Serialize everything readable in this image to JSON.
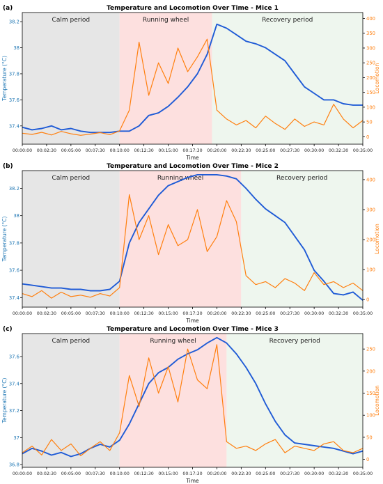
{
  "colors": {
    "temperature": "#1f5bd6",
    "locomotion": "#ff7f0e",
    "temp_axis_text": "#1f77b4",
    "calm_bg": "#e6e6e6",
    "running_bg": "#fde0df",
    "recovery_bg": "#eef6ee"
  },
  "chart_data": [
    {
      "type": "line",
      "panel_label": "(a)",
      "title": "Temperature and Locomotion Over Time - Mice 1",
      "xlabel": "Time",
      "ylabel_left": "Temperature (°C)",
      "ylabel_right": "Locomotion",
      "x_ticks": [
        "00:00:00",
        "00:02:30",
        "00:05:00",
        "00:07:30",
        "00:10:00",
        "00:12:30",
        "00:15:00",
        "00:17:30",
        "00:20:00",
        "00:22:30",
        "00:25:00",
        "00:27:30",
        "00:30:00",
        "00:32:30",
        "00:35:00"
      ],
      "x_range_minutes": [
        0,
        35
      ],
      "y_left_ticks": [
        37.4,
        37.6,
        37.8,
        38.0,
        38.2
      ],
      "y_left_range": [
        37.26,
        38.27
      ],
      "y_right_ticks": [
        0,
        50,
        100,
        150,
        200,
        250,
        300,
        350,
        400
      ],
      "y_right_range": [
        -25,
        420
      ],
      "periods": [
        {
          "label": "Calm period",
          "start": 0,
          "end": 10
        },
        {
          "label": "Running wheel",
          "start": 10,
          "end": 19.5
        },
        {
          "label": "Recovery period",
          "start": 19.5,
          "end": 35
        }
      ],
      "series": [
        {
          "axis": "left",
          "color": "#1f5bd6",
          "x": [
            0,
            1,
            2,
            3,
            4,
            5,
            6,
            7,
            8,
            9,
            10,
            11,
            12,
            13,
            14,
            15,
            16,
            17,
            18,
            19,
            20,
            21,
            22,
            23,
            24,
            25,
            26,
            27,
            28,
            29,
            30,
            31,
            32,
            33,
            34,
            35
          ],
          "y": [
            37.39,
            37.37,
            37.38,
            37.4,
            37.37,
            37.38,
            37.36,
            37.35,
            37.35,
            37.35,
            37.36,
            37.36,
            37.4,
            37.48,
            37.5,
            37.55,
            37.62,
            37.7,
            37.8,
            37.95,
            38.18,
            38.15,
            38.1,
            38.05,
            38.03,
            38.0,
            37.95,
            37.9,
            37.8,
            37.7,
            37.65,
            37.6,
            37.6,
            37.57,
            37.56,
            37.56
          ]
        },
        {
          "axis": "right",
          "color": "#ff7f0e",
          "x": [
            0,
            1,
            2,
            3,
            4,
            5,
            6,
            7,
            8,
            9,
            10,
            11,
            12,
            13,
            14,
            15,
            16,
            17,
            18,
            19,
            20,
            21,
            22,
            23,
            24,
            25,
            26,
            27,
            28,
            29,
            30,
            31,
            32,
            33,
            34,
            35
          ],
          "y": [
            12,
            8,
            15,
            6,
            18,
            10,
            5,
            9,
            14,
            7,
            20,
            90,
            320,
            140,
            250,
            180,
            300,
            220,
            270,
            330,
            90,
            60,
            40,
            55,
            30,
            70,
            45,
            25,
            60,
            35,
            50,
            40,
            110,
            60,
            30,
            55
          ]
        }
      ]
    },
    {
      "type": "line",
      "panel_label": "(b)",
      "title": "Temperature and Locomotion Over Time - Mice 2",
      "xlabel": "Time",
      "ylabel_left": "Temperature (°C)",
      "ylabel_right": "Locomotion",
      "x_ticks": [
        "00:00:00",
        "00:02:30",
        "00:05:00",
        "00:07:30",
        "00:10:00",
        "00:12:30",
        "00:15:00",
        "00:17:30",
        "00:20:00",
        "00:22:30",
        "00:25:00",
        "00:27:30",
        "00:30:00",
        "00:32:30",
        "00:35:00"
      ],
      "x_range_minutes": [
        0,
        35
      ],
      "y_left_ticks": [
        37.4,
        37.6,
        37.8,
        38.0,
        38.2
      ],
      "y_left_range": [
        37.33,
        38.33
      ],
      "y_right_ticks": [
        0,
        100,
        200,
        300,
        400
      ],
      "y_right_range": [
        -25,
        430
      ],
      "periods": [
        {
          "label": "Calm period",
          "start": 0,
          "end": 10
        },
        {
          "label": "Running wheel",
          "start": 10,
          "end": 22.5
        },
        {
          "label": "Recovery period",
          "start": 22.5,
          "end": 35
        }
      ],
      "series": [
        {
          "axis": "left",
          "color": "#1f5bd6",
          "x": [
            0,
            1,
            2,
            3,
            4,
            5,
            6,
            7,
            8,
            9,
            10,
            11,
            12,
            13,
            14,
            15,
            16,
            17,
            18,
            19,
            20,
            21,
            22,
            23,
            24,
            25,
            26,
            27,
            28,
            29,
            30,
            31,
            32,
            33,
            34,
            35
          ],
          "y": [
            37.5,
            37.49,
            37.48,
            37.47,
            37.47,
            37.46,
            37.46,
            37.45,
            37.45,
            37.46,
            37.52,
            37.8,
            37.95,
            38.05,
            38.15,
            38.22,
            38.25,
            38.28,
            38.3,
            38.3,
            38.3,
            38.29,
            38.27,
            38.2,
            38.12,
            38.05,
            38.0,
            37.95,
            37.85,
            37.75,
            37.6,
            37.52,
            37.43,
            37.42,
            37.44,
            37.38
          ]
        },
        {
          "axis": "right",
          "color": "#ff7f0e",
          "x": [
            0,
            1,
            2,
            3,
            4,
            5,
            6,
            7,
            8,
            9,
            10,
            11,
            12,
            13,
            14,
            15,
            16,
            17,
            18,
            19,
            20,
            21,
            22,
            23,
            24,
            25,
            26,
            27,
            28,
            29,
            30,
            31,
            32,
            33,
            34,
            35
          ],
          "y": [
            20,
            10,
            30,
            5,
            25,
            10,
            15,
            8,
            20,
            12,
            40,
            350,
            200,
            280,
            150,
            250,
            180,
            200,
            300,
            160,
            210,
            330,
            260,
            80,
            50,
            60,
            40,
            70,
            55,
            30,
            90,
            50,
            60,
            40,
            55,
            30
          ]
        }
      ]
    },
    {
      "type": "line",
      "panel_label": "(c)",
      "title": "Temperature and Locomotion Over Time - Mice 3",
      "xlabel": "Time",
      "ylabel_left": "Temperature (°C)",
      "ylabel_right": "Locomotion",
      "x_ticks": [
        "00:00:00",
        "00:02:30",
        "00:05:00",
        "00:07:30",
        "00:10:00",
        "00:12:30",
        "00:15:00",
        "00:17:30",
        "00:20:00",
        "00:22:30",
        "00:25:00",
        "00:27:30",
        "00:30:00",
        "00:32:30",
        "00:35:00"
      ],
      "x_range_minutes": [
        0,
        35
      ],
      "y_left_ticks": [
        36.8,
        37.0,
        37.2,
        37.4,
        37.6
      ],
      "y_left_range": [
        36.78,
        37.77
      ],
      "y_right_ticks": [
        0,
        50,
        100,
        150,
        200,
        250
      ],
      "y_right_range": [
        -18,
        285
      ],
      "periods": [
        {
          "label": "Calm period",
          "start": 0,
          "end": 10
        },
        {
          "label": "Running wheel",
          "start": 10,
          "end": 21
        },
        {
          "label": "Recovery period",
          "start": 21,
          "end": 35
        }
      ],
      "series": [
        {
          "axis": "left",
          "color": "#1f5bd6",
          "x": [
            0,
            1,
            2,
            3,
            4,
            5,
            6,
            7,
            8,
            9,
            10,
            11,
            12,
            13,
            14,
            15,
            16,
            17,
            18,
            19,
            20,
            21,
            22,
            23,
            24,
            25,
            26,
            27,
            28,
            29,
            30,
            31,
            32,
            33,
            34,
            35
          ],
          "y": [
            36.88,
            36.92,
            36.9,
            36.87,
            36.89,
            36.86,
            36.88,
            36.92,
            36.95,
            36.93,
            36.98,
            37.1,
            37.25,
            37.4,
            37.48,
            37.52,
            37.58,
            37.62,
            37.65,
            37.7,
            37.74,
            37.7,
            37.62,
            37.52,
            37.4,
            37.25,
            37.12,
            37.02,
            36.96,
            36.95,
            36.94,
            36.93,
            36.92,
            36.9,
            36.88,
            36.9
          ]
        },
        {
          "axis": "right",
          "color": "#ff7f0e",
          "x": [
            0,
            1,
            2,
            3,
            4,
            5,
            6,
            7,
            8,
            9,
            10,
            11,
            12,
            13,
            14,
            15,
            16,
            17,
            18,
            19,
            20,
            21,
            22,
            23,
            24,
            25,
            26,
            27,
            28,
            29,
            30,
            31,
            32,
            33,
            34,
            35
          ],
          "y": [
            15,
            30,
            10,
            45,
            20,
            35,
            8,
            25,
            40,
            20,
            60,
            190,
            120,
            230,
            150,
            210,
            130,
            250,
            180,
            160,
            260,
            40,
            25,
            30,
            20,
            35,
            45,
            15,
            30,
            25,
            20,
            35,
            40,
            20,
            15,
            25
          ]
        }
      ]
    }
  ]
}
